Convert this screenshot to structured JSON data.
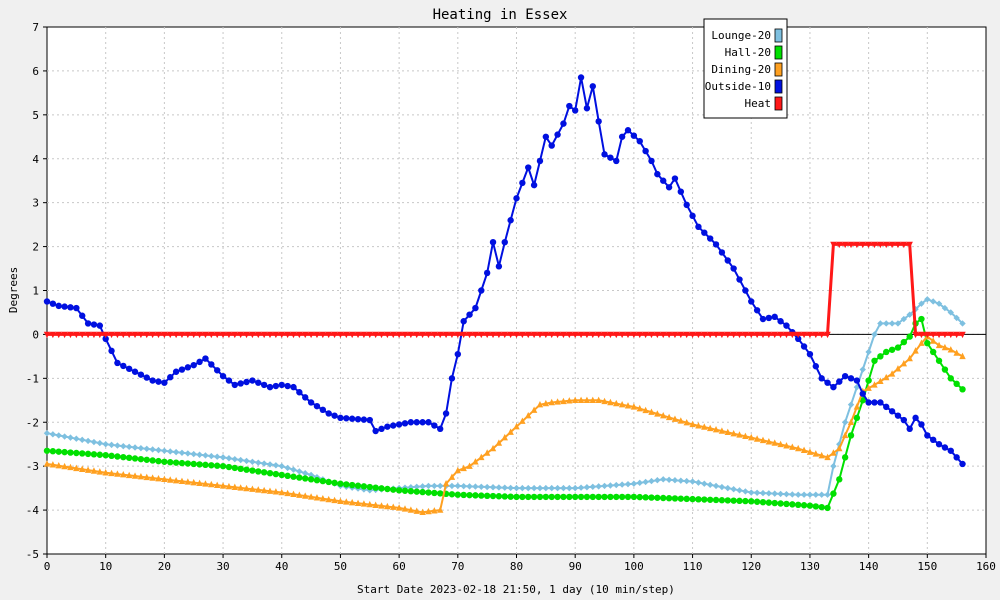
{
  "chart_data": {
    "type": "line",
    "title": "Heating in Essex",
    "xlabel": "Start Date 2023-02-18 21:50, 1 day (10 min/step)",
    "ylabel": "Degrees",
    "xlim": [
      0,
      160
    ],
    "ylim": [
      -5,
      7
    ],
    "xticks": [
      0,
      10,
      20,
      30,
      40,
      50,
      60,
      70,
      80,
      90,
      100,
      110,
      120,
      130,
      140,
      150,
      160
    ],
    "yticks": [
      -5,
      -4,
      -3,
      -2,
      -1,
      0,
      1,
      2,
      3,
      4,
      5,
      6,
      7
    ],
    "grid": true,
    "legend_position": "top-right",
    "colors": {
      "background": "#f0f0f0",
      "plot_background": "#ffffff",
      "grid": "#c8c8c8"
    },
    "series": [
      {
        "name": "Lounge-20",
        "color": "#7ec0e0",
        "marker": "diamond",
        "keypoints": [
          [
            0,
            -2.25
          ],
          [
            10,
            -2.5
          ],
          [
            20,
            -2.65
          ],
          [
            30,
            -2.8
          ],
          [
            40,
            -3.0
          ],
          [
            45,
            -3.2
          ],
          [
            50,
            -3.45
          ],
          [
            55,
            -3.55
          ],
          [
            60,
            -3.5
          ],
          [
            65,
            -3.45
          ],
          [
            70,
            -3.45
          ],
          [
            80,
            -3.5
          ],
          [
            90,
            -3.5
          ],
          [
            100,
            -3.4
          ],
          [
            105,
            -3.3
          ],
          [
            110,
            -3.35
          ],
          [
            120,
            -3.6
          ],
          [
            128,
            -3.65
          ],
          [
            133,
            -3.65
          ],
          [
            134,
            -3.0
          ],
          [
            136,
            -2.0
          ],
          [
            138,
            -1.2
          ],
          [
            140,
            -0.4
          ],
          [
            141,
            0.0
          ],
          [
            142,
            0.25
          ],
          [
            145,
            0.25
          ],
          [
            147,
            0.45
          ],
          [
            149,
            0.7
          ],
          [
            150,
            0.8
          ],
          [
            152,
            0.7
          ],
          [
            154,
            0.5
          ],
          [
            156,
            0.25
          ]
        ]
      },
      {
        "name": "Hall-20",
        "color": "#00e000",
        "marker": "circle",
        "keypoints": [
          [
            0,
            -2.65
          ],
          [
            5,
            -2.7
          ],
          [
            10,
            -2.75
          ],
          [
            20,
            -2.9
          ],
          [
            30,
            -3.0
          ],
          [
            35,
            -3.1
          ],
          [
            40,
            -3.2
          ],
          [
            50,
            -3.4
          ],
          [
            60,
            -3.55
          ],
          [
            70,
            -3.65
          ],
          [
            80,
            -3.7
          ],
          [
            90,
            -3.7
          ],
          [
            100,
            -3.7
          ],
          [
            110,
            -3.75
          ],
          [
            120,
            -3.8
          ],
          [
            130,
            -3.9
          ],
          [
            133,
            -3.95
          ],
          [
            135,
            -3.3
          ],
          [
            137,
            -2.3
          ],
          [
            139,
            -1.5
          ],
          [
            141,
            -0.6
          ],
          [
            143,
            -0.4
          ],
          [
            145,
            -0.3
          ],
          [
            147,
            -0.05
          ],
          [
            148,
            0.25
          ],
          [
            149,
            0.35
          ],
          [
            150,
            -0.2
          ],
          [
            152,
            -0.6
          ],
          [
            154,
            -1.0
          ],
          [
            156,
            -1.25
          ]
        ]
      },
      {
        "name": "Dining-20",
        "color": "#ffa020",
        "marker": "triangle",
        "keypoints": [
          [
            0,
            -2.95
          ],
          [
            10,
            -3.15
          ],
          [
            20,
            -3.3
          ],
          [
            30,
            -3.45
          ],
          [
            40,
            -3.6
          ],
          [
            50,
            -3.8
          ],
          [
            60,
            -3.95
          ],
          [
            64,
            -4.05
          ],
          [
            67,
            -4.0
          ],
          [
            68,
            -3.4
          ],
          [
            70,
            -3.1
          ],
          [
            72,
            -3.0
          ],
          [
            76,
            -2.6
          ],
          [
            80,
            -2.1
          ],
          [
            84,
            -1.6
          ],
          [
            86,
            -1.55
          ],
          [
            90,
            -1.5
          ],
          [
            94,
            -1.5
          ],
          [
            100,
            -1.65
          ],
          [
            110,
            -2.05
          ],
          [
            120,
            -2.35
          ],
          [
            128,
            -2.6
          ],
          [
            133,
            -2.8
          ],
          [
            135,
            -2.6
          ],
          [
            137,
            -2.0
          ],
          [
            139,
            -1.3
          ],
          [
            141,
            -1.15
          ],
          [
            144,
            -0.9
          ],
          [
            147,
            -0.55
          ],
          [
            149,
            -0.2
          ],
          [
            150,
            -0.05
          ],
          [
            152,
            -0.25
          ],
          [
            154,
            -0.35
          ],
          [
            156,
            -0.5
          ]
        ]
      },
      {
        "name": "Outside-10",
        "color": "#0010e0",
        "marker": "circle",
        "keypoints": [
          [
            0,
            0.75
          ],
          [
            2,
            0.65
          ],
          [
            5,
            0.6
          ],
          [
            7,
            0.25
          ],
          [
            9,
            0.2
          ],
          [
            10,
            -0.1
          ],
          [
            12,
            -0.65
          ],
          [
            15,
            -0.85
          ],
          [
            18,
            -1.05
          ],
          [
            20,
            -1.1
          ],
          [
            22,
            -0.85
          ],
          [
            25,
            -0.7
          ],
          [
            27,
            -0.55
          ],
          [
            30,
            -0.95
          ],
          [
            32,
            -1.15
          ],
          [
            35,
            -1.05
          ],
          [
            38,
            -1.2
          ],
          [
            40,
            -1.15
          ],
          [
            42,
            -1.2
          ],
          [
            45,
            -1.55
          ],
          [
            48,
            -1.8
          ],
          [
            50,
            -1.9
          ],
          [
            55,
            -1.95
          ],
          [
            56,
            -2.2
          ],
          [
            58,
            -2.1
          ],
          [
            62,
            -2.0
          ],
          [
            65,
            -2.0
          ],
          [
            67,
            -2.15
          ],
          [
            68,
            -1.8
          ],
          [
            69,
            -1.0
          ],
          [
            70,
            -0.45
          ],
          [
            71,
            0.3
          ],
          [
            73,
            0.6
          ],
          [
            75,
            1.4
          ],
          [
            76,
            2.1
          ],
          [
            77,
            1.55
          ],
          [
            78,
            2.1
          ],
          [
            80,
            3.1
          ],
          [
            82,
            3.8
          ],
          [
            83,
            3.4
          ],
          [
            85,
            4.5
          ],
          [
            86,
            4.3
          ],
          [
            88,
            4.8
          ],
          [
            89,
            5.2
          ],
          [
            90,
            5.1
          ],
          [
            91,
            5.85
          ],
          [
            92,
            5.15
          ],
          [
            93,
            5.65
          ],
          [
            94,
            4.85
          ],
          [
            95,
            4.1
          ],
          [
            97,
            3.95
          ],
          [
            98,
            4.5
          ],
          [
            99,
            4.65
          ],
          [
            101,
            4.4
          ],
          [
            103,
            3.95
          ],
          [
            104,
            3.65
          ],
          [
            106,
            3.35
          ],
          [
            107,
            3.55
          ],
          [
            109,
            2.95
          ],
          [
            111,
            2.45
          ],
          [
            114,
            2.05
          ],
          [
            117,
            1.5
          ],
          [
            120,
            0.75
          ],
          [
            122,
            0.35
          ],
          [
            124,
            0.4
          ],
          [
            126,
            0.2
          ],
          [
            128,
            -0.1
          ],
          [
            130,
            -0.45
          ],
          [
            132,
            -1.0
          ],
          [
            134,
            -1.2
          ],
          [
            136,
            -0.95
          ],
          [
            138,
            -1.05
          ],
          [
            139,
            -1.35
          ],
          [
            140,
            -1.55
          ],
          [
            142,
            -1.55
          ],
          [
            144,
            -1.75
          ],
          [
            146,
            -1.95
          ],
          [
            147,
            -2.15
          ],
          [
            148,
            -1.9
          ],
          [
            149,
            -2.05
          ],
          [
            150,
            -2.3
          ],
          [
            152,
            -2.5
          ],
          [
            154,
            -2.65
          ],
          [
            156,
            -2.95
          ]
        ]
      },
      {
        "name": "Heat",
        "color": "#ff1818",
        "marker": "triangle-down",
        "keypoints": [
          [
            0,
            0
          ],
          [
            133,
            0
          ],
          [
            134,
            2.05
          ],
          [
            147,
            2.05
          ],
          [
            148,
            0
          ],
          [
            156,
            0
          ]
        ]
      }
    ]
  }
}
